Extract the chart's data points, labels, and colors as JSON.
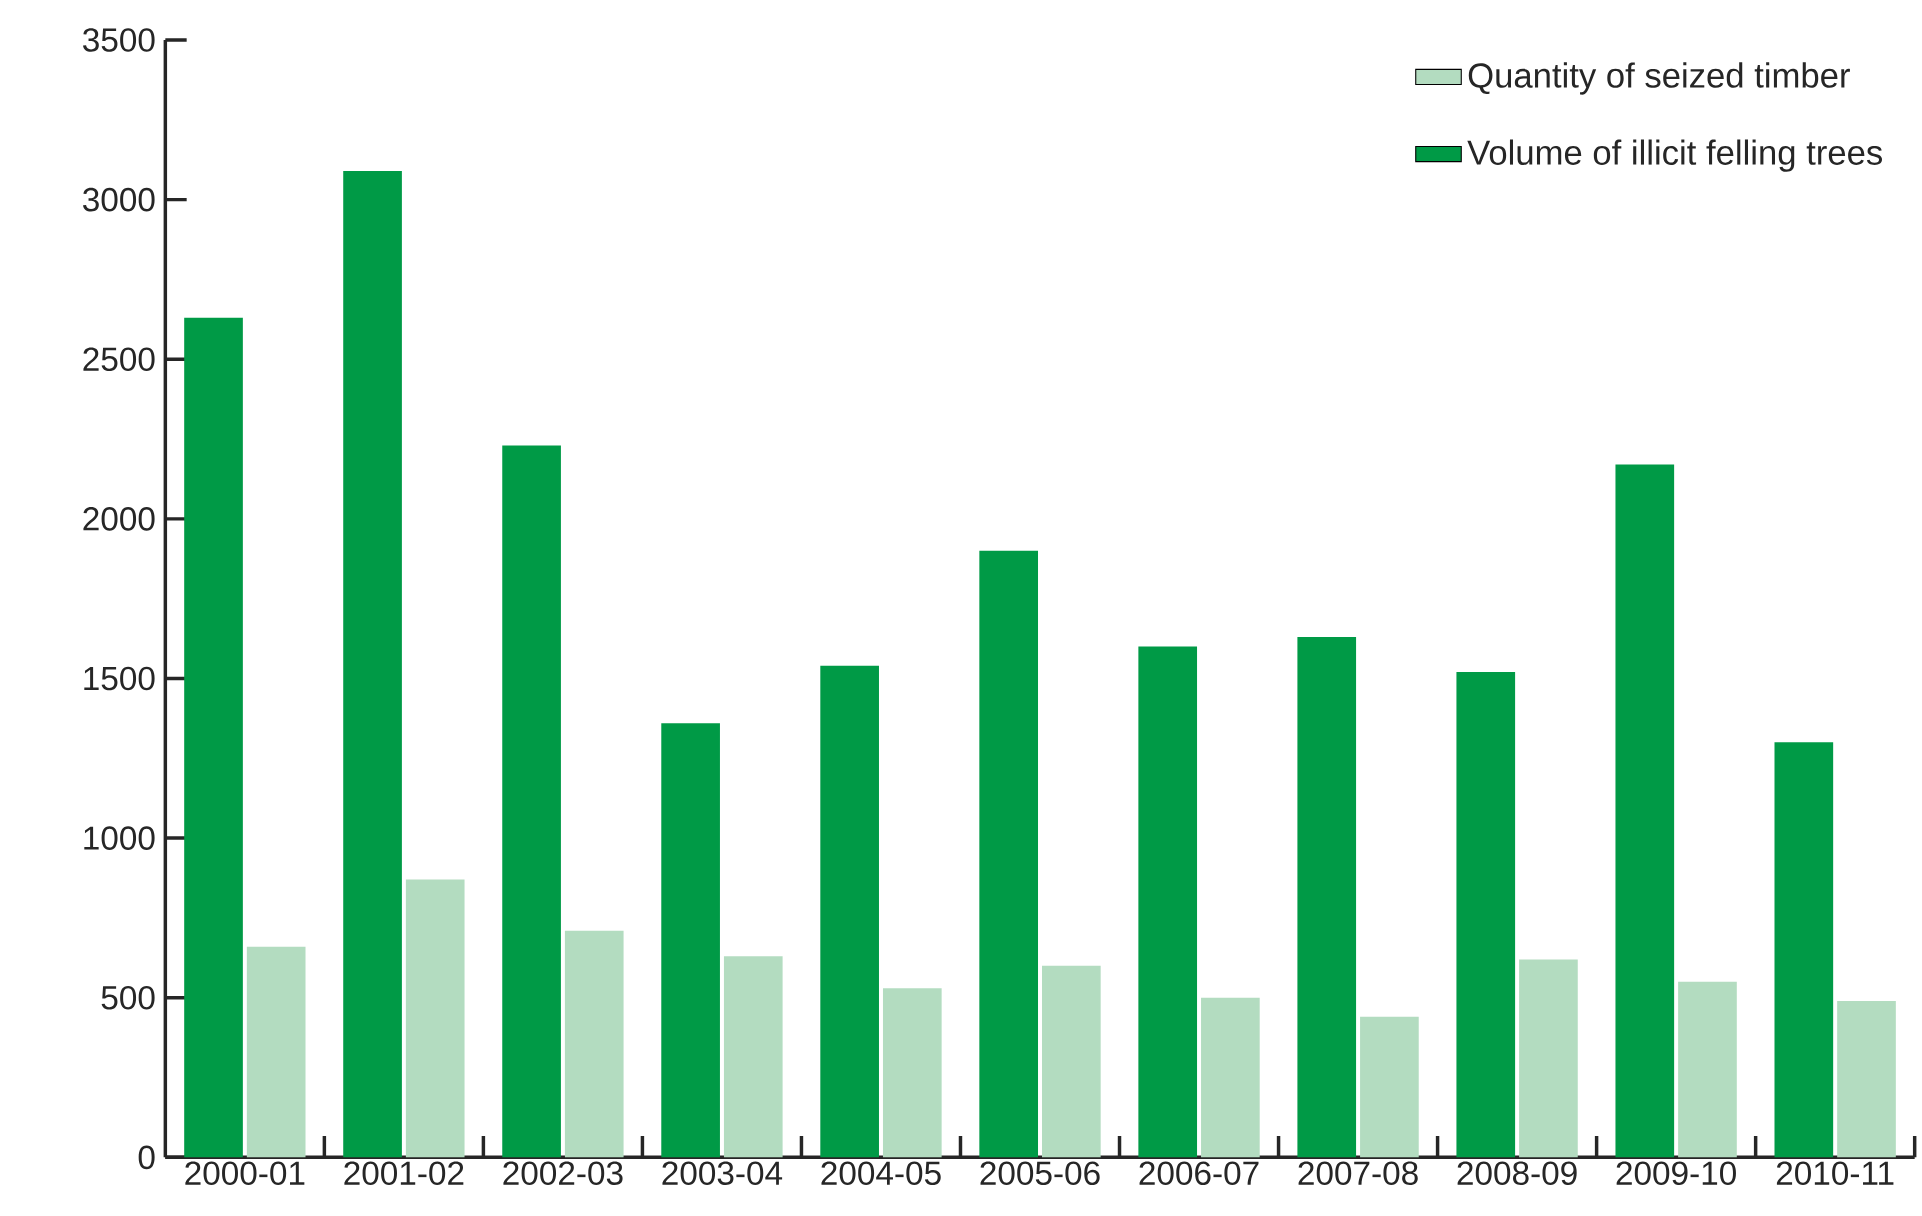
{
  "chart_data": {
    "type": "bar",
    "categories": [
      "2000-01",
      "2001-02",
      "2002-03",
      "2003-04",
      "2004-05",
      "2005-06",
      "2006-07",
      "2007-08",
      "2008-09",
      "2009-10",
      "2010-11"
    ],
    "series": [
      {
        "name": "Volume of illicit felling trees",
        "color": "#009a46",
        "values": [
          2630,
          3090,
          2230,
          1360,
          1540,
          1900,
          1600,
          1630,
          1520,
          2170,
          1300
        ]
      },
      {
        "name": "Quantity of seized timber",
        "color": "#b3dcc0",
        "values": [
          660,
          870,
          710,
          630,
          530,
          600,
          500,
          440,
          620,
          550,
          490
        ]
      }
    ],
    "ylim": [
      0,
      3500
    ],
    "yticks": [
      0,
      500,
      1000,
      1500,
      2000,
      2500,
      3000,
      3500
    ],
    "legend": "top right",
    "grid": false
  }
}
